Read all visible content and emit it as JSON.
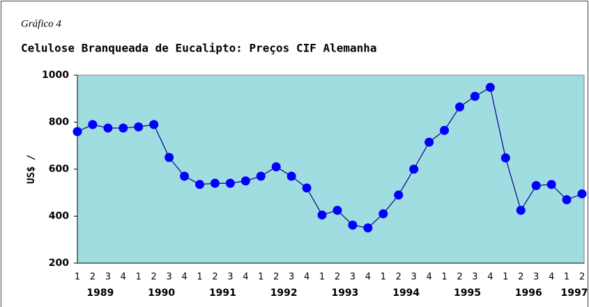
{
  "chart_data": {
    "type": "line",
    "subtitle": "Gráfico 4",
    "title": "Celulose Branqueada de Eucalipto: Preços CIF Alemanha",
    "y_label": "US$ /",
    "categories": [
      "1",
      "2",
      "3",
      "4",
      "1",
      "2",
      "3",
      "4",
      "1",
      "2",
      "3",
      "4",
      "1",
      "2",
      "3",
      "4",
      "1",
      "2",
      "3",
      "4",
      "1",
      "2",
      "3",
      "4",
      "1",
      "2",
      "3",
      "4",
      "1",
      "2",
      "3",
      "4",
      "1",
      "2"
    ],
    "years": [
      "1989",
      "1990",
      "1991",
      "1992",
      "1993",
      "1994",
      "1995",
      "1996",
      "1997"
    ],
    "values": [
      760,
      790,
      775,
      775,
      780,
      790,
      650,
      570,
      535,
      540,
      540,
      550,
      570,
      610,
      570,
      520,
      405,
      425,
      362,
      350,
      410,
      490,
      600,
      715,
      765,
      865,
      910,
      948,
      648,
      425,
      530,
      535,
      470,
      495
    ],
    "color": "#0000ff",
    "line_color": "#000080",
    "background": "#a0dde0",
    "ylim": [
      200,
      1000
    ],
    "yticks": [
      200,
      400,
      600,
      800,
      1000
    ]
  }
}
